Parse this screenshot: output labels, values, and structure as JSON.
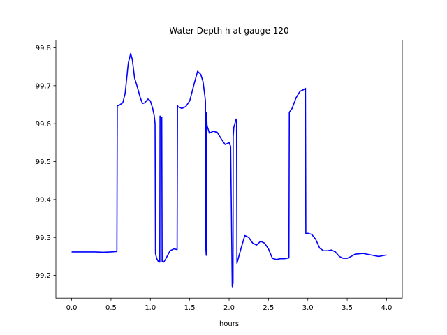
{
  "chart_data": {
    "type": "line",
    "title": "Water Depth h at gauge 120",
    "xlabel": "hours",
    "ylabel": "",
    "xlim": [
      -0.2,
      4.2
    ],
    "ylim": [
      99.14,
      99.82
    ],
    "xticks": [
      0.0,
      0.5,
      1.0,
      1.5,
      2.0,
      2.5,
      3.0,
      3.5,
      4.0
    ],
    "xtick_labels": [
      "0.0",
      "0.5",
      "1.0",
      "1.5",
      "2.0",
      "2.5",
      "3.0",
      "3.5",
      "4.0"
    ],
    "yticks": [
      99.2,
      99.3,
      99.4,
      99.5,
      99.6,
      99.7,
      99.8
    ],
    "ytick_labels": [
      "99.2",
      "99.3",
      "99.4",
      "99.5",
      "99.6",
      "99.7",
      "99.8"
    ],
    "grid": false,
    "line_color": "#0000ff",
    "series": [
      {
        "x": [
          0.0,
          0.1,
          0.2,
          0.3,
          0.4,
          0.5,
          0.575,
          0.58,
          0.6,
          0.65,
          0.68,
          0.72,
          0.75,
          0.77,
          0.8,
          0.83,
          0.87,
          0.9,
          0.93,
          0.97,
          1.0,
          1.03,
          1.05,
          1.06,
          1.065,
          1.08,
          1.1,
          1.12,
          1.123,
          1.13,
          1.145,
          1.15,
          1.17,
          1.2,
          1.25,
          1.3,
          1.34,
          1.345,
          1.35,
          1.4,
          1.45,
          1.5,
          1.55,
          1.6,
          1.64,
          1.67,
          1.7,
          1.705,
          1.71,
          1.712,
          1.715,
          1.72,
          1.75,
          1.8,
          1.85,
          1.9,
          1.95,
          2.0,
          2.02,
          2.04,
          2.042,
          2.05,
          2.052,
          2.06,
          2.08,
          2.09,
          2.095,
          2.1,
          2.15,
          2.2,
          2.25,
          2.3,
          2.35,
          2.4,
          2.45,
          2.5,
          2.55,
          2.6,
          2.65,
          2.7,
          2.76,
          2.765,
          2.8,
          2.85,
          2.9,
          2.95,
          2.97,
          2.975,
          3.0,
          3.05,
          3.1,
          3.15,
          3.2,
          3.25,
          3.3,
          3.35,
          3.4,
          3.45,
          3.5,
          3.55,
          3.6,
          3.7,
          3.8,
          3.9,
          4.0
        ],
        "y": [
          99.262,
          99.262,
          99.262,
          99.262,
          99.261,
          99.262,
          99.263,
          99.647,
          99.648,
          99.655,
          99.68,
          99.76,
          99.785,
          99.77,
          99.72,
          99.7,
          99.67,
          99.653,
          99.655,
          99.665,
          99.66,
          99.64,
          99.62,
          99.6,
          99.258,
          99.245,
          99.237,
          99.235,
          99.62,
          99.617,
          99.617,
          99.237,
          99.235,
          99.245,
          99.265,
          99.27,
          99.268,
          99.648,
          99.645,
          99.64,
          99.645,
          99.66,
          99.7,
          99.738,
          99.73,
          99.71,
          99.66,
          99.27,
          99.253,
          99.63,
          99.625,
          99.595,
          99.575,
          99.58,
          99.577,
          99.56,
          99.545,
          99.55,
          99.54,
          99.172,
          99.17,
          99.18,
          99.565,
          99.59,
          99.605,
          99.612,
          99.612,
          99.232,
          99.27,
          99.305,
          99.3,
          99.285,
          99.28,
          99.29,
          99.285,
          99.27,
          99.245,
          99.242,
          99.244,
          99.244,
          99.246,
          99.63,
          99.64,
          99.668,
          99.685,
          99.69,
          99.693,
          99.31,
          99.311,
          99.308,
          99.295,
          99.272,
          99.265,
          99.265,
          99.267,
          99.262,
          99.25,
          99.245,
          99.245,
          99.25,
          99.256,
          99.258,
          99.254,
          99.25,
          99.254
        ]
      }
    ]
  }
}
